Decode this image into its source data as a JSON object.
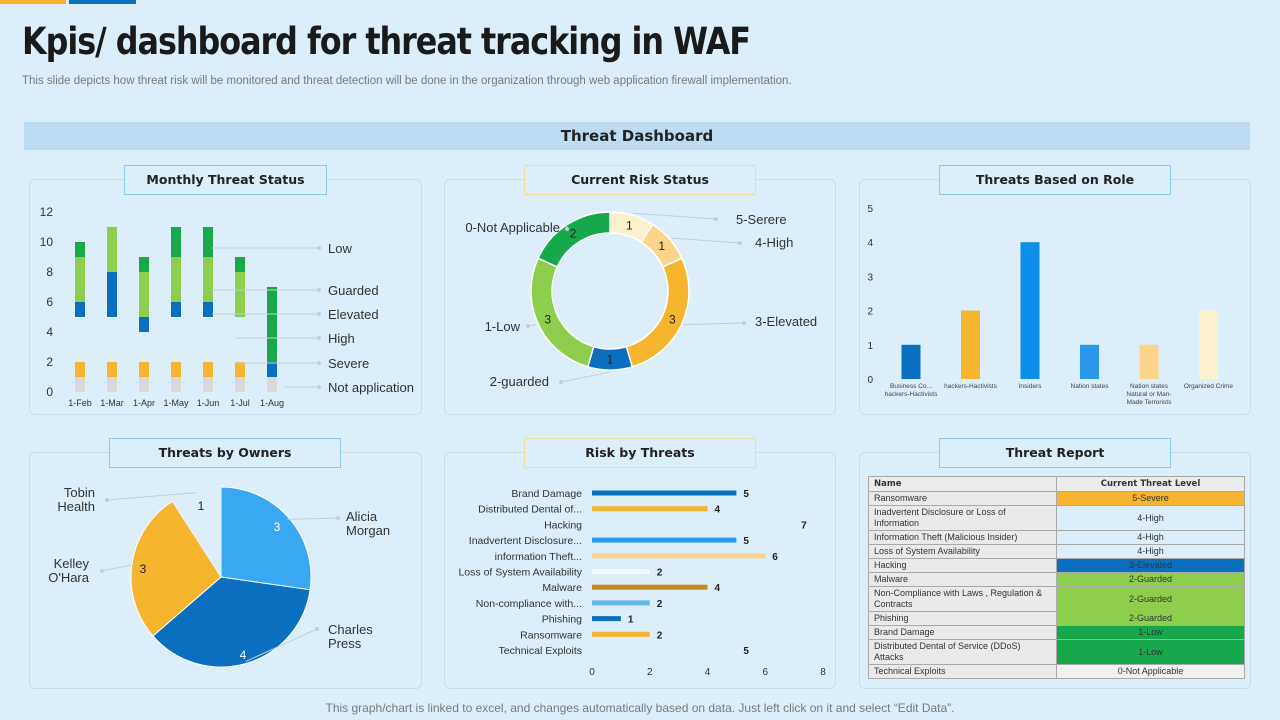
{
  "title": "Kpis/ dashboard for threat tracking in WAF",
  "subtitle": "This slide depicts how threat risk will be monitored and threat detection will be done in the organization through web application firewall implementation.",
  "dashboard_title": "Threat Dashboard",
  "footer": "This graph/chart is linked to excel,  and changes automatically based on data. Just left click on it and select “Edit Data”.",
  "colors": {
    "dark_blue": "#0b6fbf",
    "mid_blue": "#2a98e6",
    "light_blue": "#62b8ef",
    "green": "#16a84a",
    "light_green": "#8dcf4d",
    "orange": "#f5b52f",
    "light_orange": "#fcd48a",
    "cream": "#fdf0cc",
    "grey": "#d9d9d9"
  },
  "panels": {
    "monthly": "Monthly Threat Status",
    "risk": "Current Risk Status",
    "role": "Threats Based on Role",
    "owners": "Threats by Owners",
    "riskthreats": "Risk by Threats",
    "report": "Threat Report"
  },
  "chart_data": [
    {
      "id": "monthly",
      "type": "bar",
      "stacked": true,
      "title": "Monthly Threat Status",
      "categories": [
        "1-Feb",
        "1-Mar",
        "1-Apr",
        "1-May",
        "1-Jun",
        "1-Jul",
        "1-Aug"
      ],
      "ylim": [
        0,
        12
      ],
      "yticks": [
        0,
        2,
        4,
        6,
        8,
        10,
        12
      ],
      "series": [
        {
          "name": "Not application",
          "color": "#d9d9d9",
          "values": [
            1,
            1,
            1,
            1,
            1,
            1,
            1
          ]
        },
        {
          "name": "Severe",
          "color": "#f5b52f",
          "values": [
            1,
            1,
            1,
            1,
            1,
            1,
            0
          ]
        },
        {
          "name": "High",
          "color": "#dbeefa",
          "values": [
            3,
            3,
            2,
            3,
            3,
            3,
            0
          ]
        },
        {
          "name": "Elevated",
          "color": "#0b6fbf",
          "values": [
            1,
            3,
            1,
            1,
            1,
            0,
            1
          ]
        },
        {
          "name": "Guarded",
          "color": "#8dcf4d",
          "values": [
            3,
            3,
            3,
            3,
            3,
            3,
            0
          ]
        },
        {
          "name": "Low",
          "color": "#16a84a",
          "values": [
            1,
            0,
            1,
            2,
            2,
            1,
            5
          ]
        }
      ],
      "legend": [
        "Low",
        "Guarded",
        "Elevated",
        "High",
        "Severe",
        "Not application"
      ]
    },
    {
      "id": "risk",
      "type": "pie",
      "donut": true,
      "title": "Current Risk Status",
      "slices": [
        {
          "label": "5-Serere",
          "value": 1,
          "color": "#fdf0cc"
        },
        {
          "label": "4-High",
          "value": 1,
          "color": "#fcd48a"
        },
        {
          "label": "3-Elevated",
          "value": 3,
          "color": "#f5b52f"
        },
        {
          "label": "2-guarded",
          "value": 1,
          "color": "#0b6fbf"
        },
        {
          "label": "1-Low",
          "value": 3,
          "color": "#8dcf4d"
        },
        {
          "label": "0-Not Applicable",
          "value": 2,
          "color": "#16a84a"
        }
      ]
    },
    {
      "id": "role",
      "type": "bar",
      "title": "Threats Based on Role",
      "ylim": [
        0,
        5
      ],
      "yticks": [
        0,
        1,
        2,
        3,
        4,
        5
      ],
      "categories": [
        [
          "Business Co...",
          "hackers-Hactivists"
        ],
        [
          "hackers-Hactivists"
        ],
        [
          "Insiders"
        ],
        [
          "Nation states"
        ],
        [
          "Nation states",
          "Natural or Man-",
          "Made Terrorists"
        ],
        [
          "Organized Crime"
        ]
      ],
      "values": [
        1,
        2,
        4,
        1,
        1,
        2
      ],
      "colors": [
        "#0b6fbf",
        "#f5b52f",
        "#0b8fe8",
        "#2a98e6",
        "#fcd48a",
        "#fdf0cc"
      ]
    },
    {
      "id": "owners",
      "type": "pie",
      "title": "Threats by Owners",
      "slices": [
        {
          "label": "Alicia Morgan",
          "value": 3,
          "color": "#3aa7f2"
        },
        {
          "label": "Charles Press",
          "value": 4,
          "color": "#0b6fbf"
        },
        {
          "label": "Kelley O'Hara",
          "value": 3,
          "color": "#f5b52f"
        },
        {
          "label": "Tobin Health",
          "value": 1,
          "color": "#dbeefa"
        }
      ]
    },
    {
      "id": "riskthreats",
      "type": "bar",
      "orientation": "horizontal",
      "title": "Risk by Threats",
      "xlim": [
        0,
        8
      ],
      "xticks": [
        0,
        2,
        4,
        6,
        8
      ],
      "categories": [
        "Brand Damage",
        "Distributed Dental of...",
        "Hacking",
        "Inadvertent Disclosure...",
        "information Theft...",
        "Loss of System Availability",
        "Malware",
        "Non-compliance with...",
        "Phishing",
        "Ransomware",
        "Technical Exploits"
      ],
      "values": [
        5,
        4,
        7,
        5,
        6,
        2,
        4,
        2,
        1,
        2,
        5
      ],
      "colors": [
        "#0b6fbf",
        "#f5b52f",
        "#dbeefa",
        "#2a98e6",
        "#fcd48a",
        "#f5f9fc",
        "#c58a1c",
        "#62b8ef",
        "#0b6fbf",
        "#f5b52f",
        "#dbeefa"
      ]
    },
    {
      "id": "report",
      "type": "table",
      "title": "Threat Report",
      "columns": [
        "Name",
        "Current Threat Level"
      ],
      "rows": [
        {
          "name": "Ransomware",
          "level": "5-Severe",
          "color": "#f5b52f"
        },
        {
          "name": "Inadvertent Disclosure or Loss of Information",
          "level": "4-High",
          "color": "#dbeefa"
        },
        {
          "name": "Information Theft (Malicious Insider)",
          "level": "4-High",
          "color": "#dbeefa"
        },
        {
          "name": "Loss of System Availability",
          "level": "4-High",
          "color": "#dbeefa"
        },
        {
          "name": "Hacking",
          "level": "3-Elevated",
          "color": "#0b6fbf"
        },
        {
          "name": "Malware",
          "level": "2-Guarded",
          "color": "#8dcf4d"
        },
        {
          "name": "Non-Compliance with Laws , Regulation & Contracts",
          "level": "2-Guarded",
          "color": "#8dcf4d"
        },
        {
          "name": "Phishing",
          "level": "2-Guarded",
          "color": "#8dcf4d"
        },
        {
          "name": "Brand Damage",
          "level": "1-Low",
          "color": "#16a84a"
        },
        {
          "name": "Distributed Dental of Service (DDoS) Attacks",
          "level": "1-Low",
          "color": "#16a84a"
        },
        {
          "name": "Technical Exploits",
          "level": "0-Not Applicable",
          "color": "#f1f1f1"
        }
      ]
    }
  ]
}
